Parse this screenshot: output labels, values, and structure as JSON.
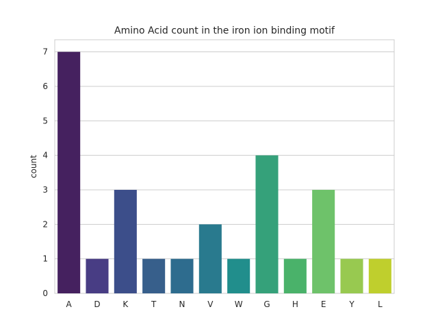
{
  "chart_data": {
    "type": "bar",
    "title": "Amino Acid count in the iron ion binding motif",
    "xlabel": "",
    "ylabel": "count",
    "categories": [
      "A",
      "D",
      "K",
      "T",
      "N",
      "V",
      "W",
      "G",
      "H",
      "E",
      "Y",
      "L"
    ],
    "values": [
      7,
      1,
      3,
      1,
      1,
      2,
      1,
      4,
      1,
      3,
      1,
      1
    ],
    "colors": [
      "#45215f",
      "#483d84",
      "#3c4e8a",
      "#375f8b",
      "#2e6c8e",
      "#297a8e",
      "#218e8c",
      "#35a17a",
      "#4ab26a",
      "#6ec26a",
      "#98c950",
      "#bfcf2d"
    ],
    "ylim": [
      0,
      7.35
    ],
    "yticks": [
      0,
      1,
      2,
      3,
      4,
      5,
      6,
      7
    ],
    "grid": true,
    "legend": "none"
  }
}
